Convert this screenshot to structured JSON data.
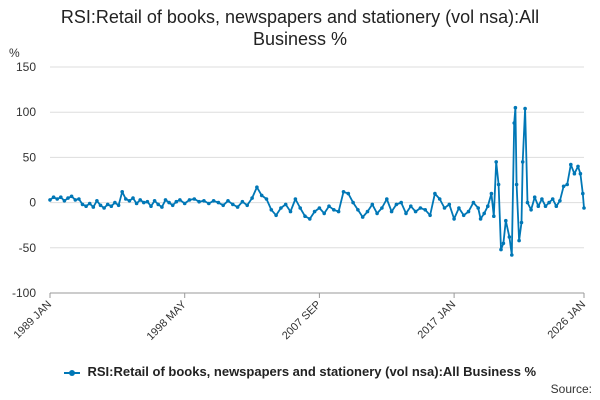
{
  "title": [
    "RSI:Retail of books, newspapers and stationery (vol nsa):All",
    "Business %"
  ],
  "source_label": "Source:",
  "colors": {
    "series": "#0077b6",
    "grid": "#dddddd",
    "axis": "#999999",
    "text": "#333333"
  },
  "chart_data": {
    "type": "line",
    "ylabel": "%",
    "ylim": [
      -100,
      150
    ],
    "yticks": [
      150,
      100,
      50,
      0,
      -50,
      -100
    ],
    "xrange": [
      "1989-01",
      "2026-01"
    ],
    "xticks": [
      {
        "label": "1989 JAN",
        "date": "1989-01"
      },
      {
        "label": "1998 MAY",
        "date": "1998-05"
      },
      {
        "label": "2007 SEP",
        "date": "2007-09"
      },
      {
        "label": "2017 JAN",
        "date": "2017-01"
      },
      {
        "label": "2026 JAN",
        "date": "2026-01"
      }
    ],
    "grid": true,
    "legend": "bottom",
    "series": [
      {
        "name": "RSI:Retail of books, newspapers and stationery (vol nsa):All Business %",
        "points": [
          [
            "1989-01",
            3
          ],
          [
            "1989-04",
            6
          ],
          [
            "1989-07",
            4
          ],
          [
            "1989-10",
            6
          ],
          [
            "1990-01",
            2
          ],
          [
            "1990-04",
            5
          ],
          [
            "1990-07",
            7
          ],
          [
            "1990-10",
            3
          ],
          [
            "1991-01",
            4
          ],
          [
            "1991-04",
            -2
          ],
          [
            "1991-07",
            -4
          ],
          [
            "1991-10",
            -1
          ],
          [
            "1992-01",
            -5
          ],
          [
            "1992-04",
            2
          ],
          [
            "1992-07",
            -3
          ],
          [
            "1992-10",
            -6
          ],
          [
            "1993-01",
            -2
          ],
          [
            "1993-04",
            -4
          ],
          [
            "1993-07",
            0
          ],
          [
            "1993-10",
            -3
          ],
          [
            "1994-01",
            12
          ],
          [
            "1994-04",
            4
          ],
          [
            "1994-07",
            2
          ],
          [
            "1994-10",
            5
          ],
          [
            "1995-01",
            -1
          ],
          [
            "1995-04",
            3
          ],
          [
            "1995-07",
            0
          ],
          [
            "1995-10",
            1
          ],
          [
            "1996-01",
            -4
          ],
          [
            "1996-04",
            2
          ],
          [
            "1996-07",
            -2
          ],
          [
            "1996-10",
            -5
          ],
          [
            "1997-01",
            3
          ],
          [
            "1997-04",
            0
          ],
          [
            "1997-07",
            -3
          ],
          [
            "1997-10",
            1
          ],
          [
            "1998-01",
            3
          ],
          [
            "1998-05",
            -1
          ],
          [
            "1998-09",
            3
          ],
          [
            "1999-01",
            4
          ],
          [
            "1999-05",
            1
          ],
          [
            "1999-09",
            2
          ],
          [
            "2000-01",
            -1
          ],
          [
            "2000-05",
            2
          ],
          [
            "2000-09",
            0
          ],
          [
            "2001-01",
            -3
          ],
          [
            "2001-05",
            2
          ],
          [
            "2001-09",
            -2
          ],
          [
            "2002-01",
            -5
          ],
          [
            "2002-05",
            1
          ],
          [
            "2002-09",
            -3
          ],
          [
            "2003-01",
            5
          ],
          [
            "2003-05",
            17
          ],
          [
            "2003-09",
            8
          ],
          [
            "2004-01",
            4
          ],
          [
            "2004-05",
            -8
          ],
          [
            "2004-09",
            -14
          ],
          [
            "2005-01",
            -6
          ],
          [
            "2005-05",
            -2
          ],
          [
            "2005-09",
            -10
          ],
          [
            "2006-01",
            4
          ],
          [
            "2006-05",
            -6
          ],
          [
            "2006-09",
            -15
          ],
          [
            "2007-01",
            -18
          ],
          [
            "2007-05",
            -10
          ],
          [
            "2007-09",
            -6
          ],
          [
            "2008-01",
            -12
          ],
          [
            "2008-05",
            -4
          ],
          [
            "2008-09",
            -8
          ],
          [
            "2009-01",
            -10
          ],
          [
            "2009-05",
            12
          ],
          [
            "2009-09",
            10
          ],
          [
            "2010-01",
            0
          ],
          [
            "2010-05",
            -8
          ],
          [
            "2010-09",
            -16
          ],
          [
            "2011-01",
            -10
          ],
          [
            "2011-05",
            -2
          ],
          [
            "2011-09",
            -12
          ],
          [
            "2012-01",
            -6
          ],
          [
            "2012-05",
            4
          ],
          [
            "2012-09",
            -10
          ],
          [
            "2013-01",
            -2
          ],
          [
            "2013-05",
            0
          ],
          [
            "2013-09",
            -12
          ],
          [
            "2014-01",
            -4
          ],
          [
            "2014-05",
            -10
          ],
          [
            "2014-09",
            -6
          ],
          [
            "2015-01",
            -8
          ],
          [
            "2015-05",
            -14
          ],
          [
            "2015-09",
            10
          ],
          [
            "2016-01",
            4
          ],
          [
            "2016-05",
            -6
          ],
          [
            "2016-09",
            -2
          ],
          [
            "2017-01",
            -18
          ],
          [
            "2017-05",
            -6
          ],
          [
            "2017-09",
            -14
          ],
          [
            "2018-01",
            -10
          ],
          [
            "2018-05",
            0
          ],
          [
            "2018-09",
            -6
          ],
          [
            "2018-11",
            -18
          ],
          [
            "2019-02",
            -12
          ],
          [
            "2019-05",
            -4
          ],
          [
            "2019-08",
            10
          ],
          [
            "2019-10",
            -15
          ],
          [
            "2019-12",
            45
          ],
          [
            "2020-02",
            20
          ],
          [
            "2020-04",
            -52
          ],
          [
            "2020-06",
            -45
          ],
          [
            "2020-08",
            -20
          ],
          [
            "2020-11",
            -38
          ],
          [
            "2021-01",
            -58
          ],
          [
            "2021-03",
            88
          ],
          [
            "2021-04",
            105
          ],
          [
            "2021-05",
            20
          ],
          [
            "2021-07",
            -42
          ],
          [
            "2021-09",
            -22
          ],
          [
            "2021-10",
            45
          ],
          [
            "2021-12",
            104
          ],
          [
            "2022-02",
            0
          ],
          [
            "2022-05",
            -8
          ],
          [
            "2022-08",
            6
          ],
          [
            "2022-11",
            -4
          ],
          [
            "2023-02",
            4
          ],
          [
            "2023-05",
            -4
          ],
          [
            "2023-08",
            0
          ],
          [
            "2023-11",
            4
          ],
          [
            "2024-02",
            -4
          ],
          [
            "2024-05",
            2
          ],
          [
            "2024-08",
            18
          ],
          [
            "2024-11",
            20
          ],
          [
            "2025-02",
            42
          ],
          [
            "2025-05",
            32
          ],
          [
            "2025-08",
            40
          ],
          [
            "2025-10",
            32
          ],
          [
            "2025-12",
            10
          ],
          [
            "2026-01",
            -6
          ]
        ]
      }
    ]
  }
}
